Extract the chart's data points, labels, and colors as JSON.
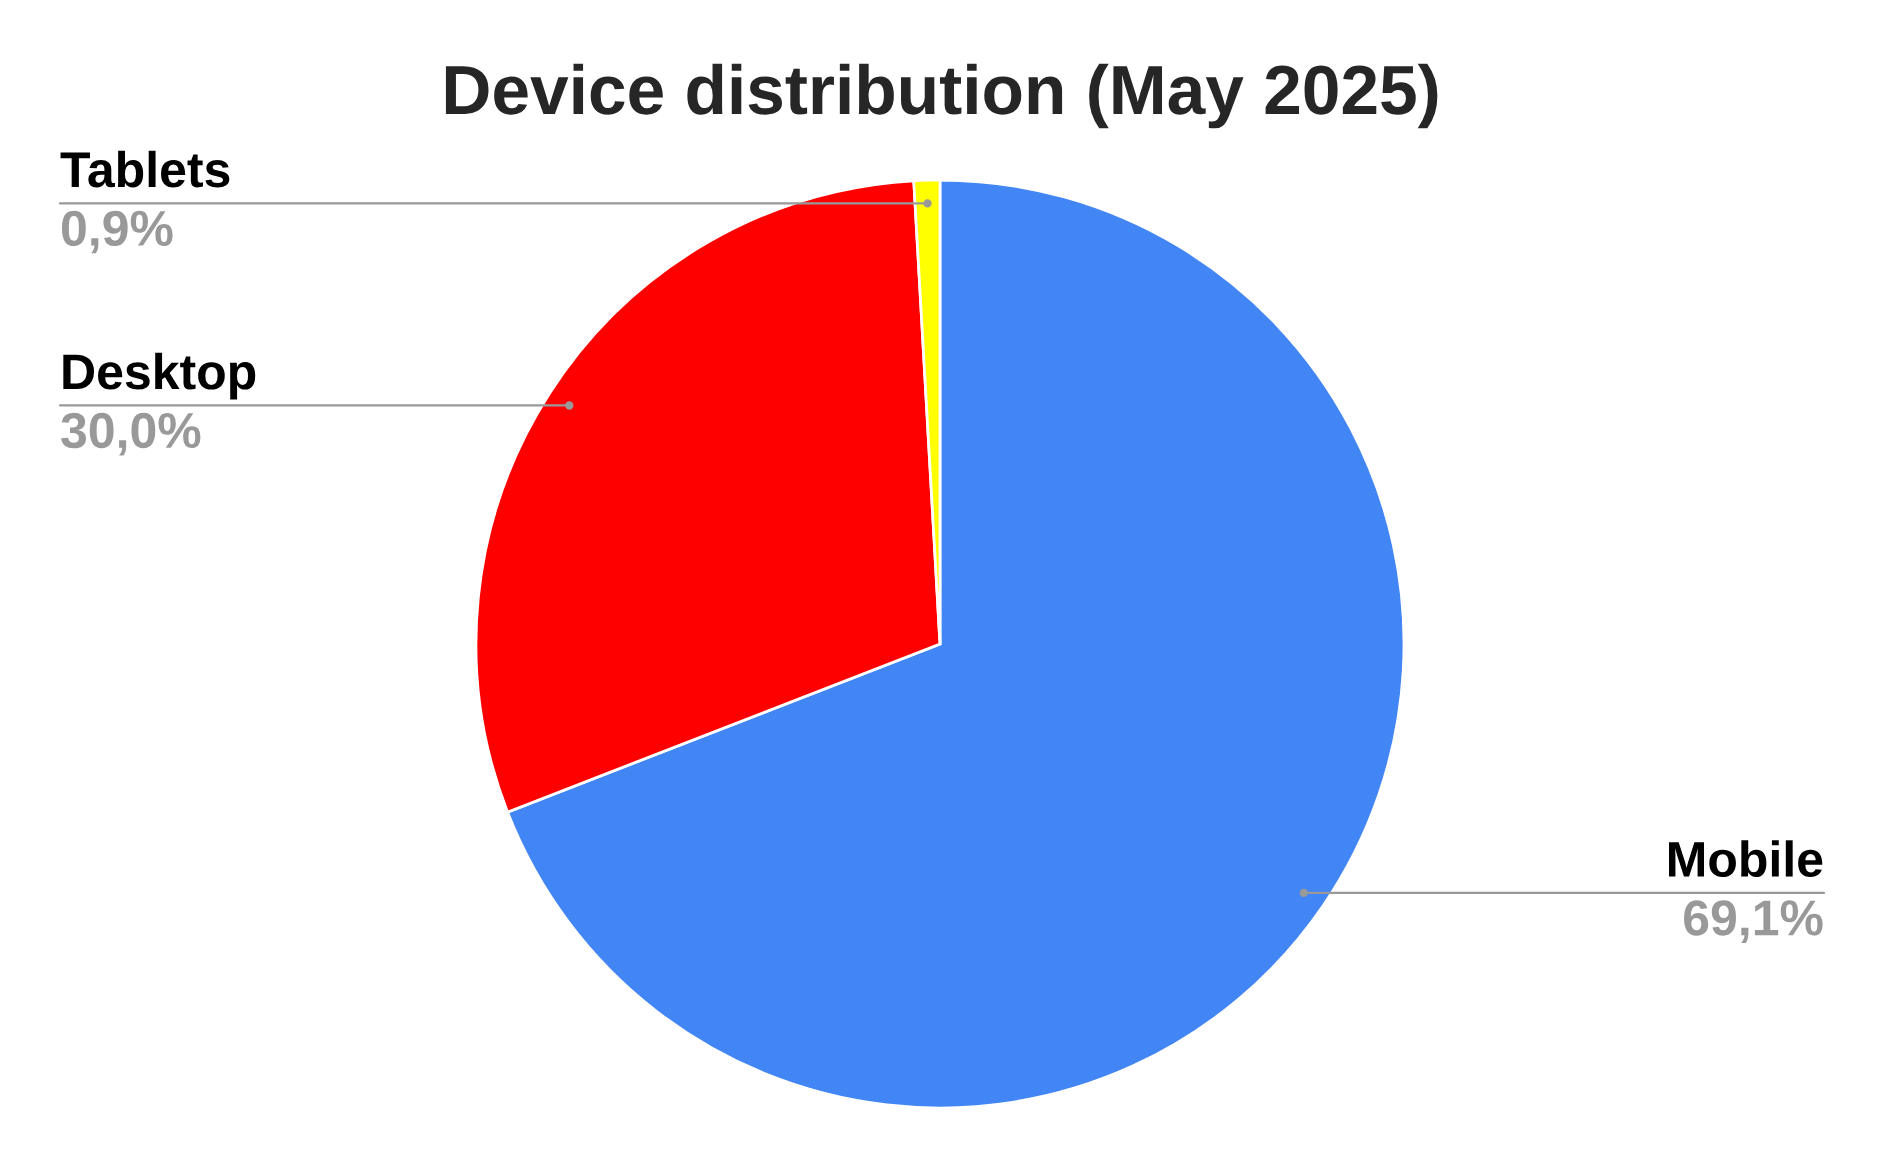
{
  "chart_data": {
    "type": "pie",
    "title": "Device distribution (May 2025)",
    "categories": [
      "Mobile",
      "Desktop",
      "Tablets"
    ],
    "values": [
      69.1,
      30.0,
      0.9
    ],
    "colors": [
      "#4285f4",
      "#ff0000",
      "#ffff00"
    ],
    "value_labels": [
      "69,1%",
      "30,0%",
      "0,9%"
    ],
    "legend": false
  }
}
